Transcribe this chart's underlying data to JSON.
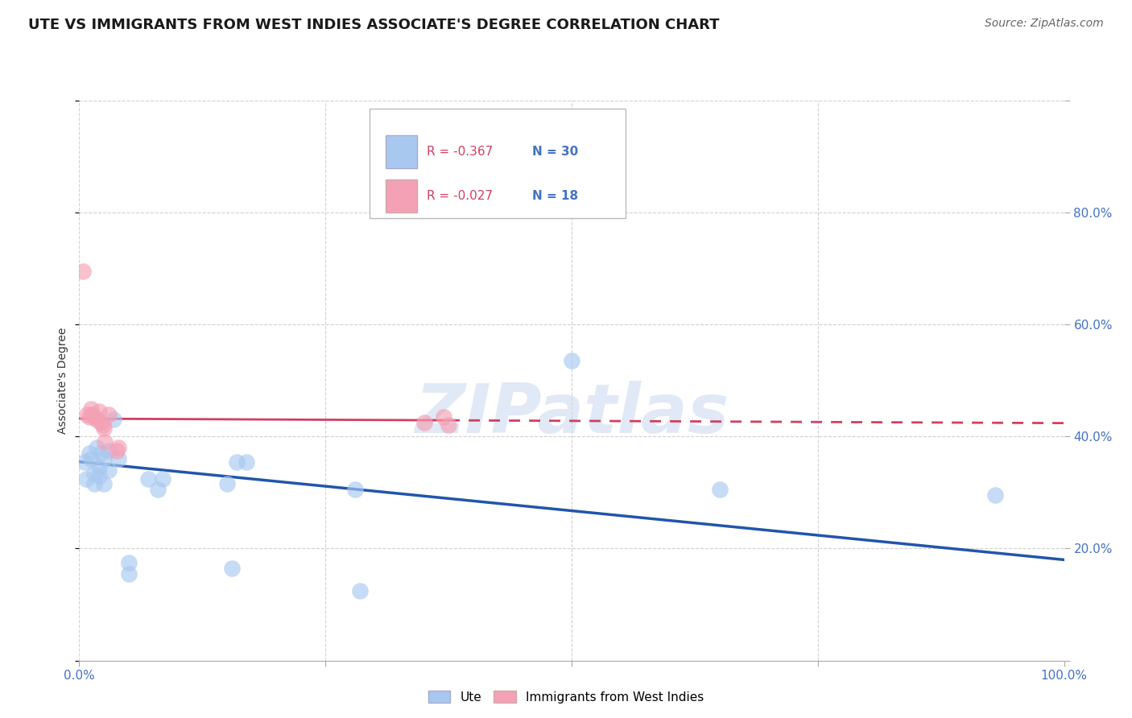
{
  "title": "UTE VS IMMIGRANTS FROM WEST INDIES ASSOCIATE'S DEGREE CORRELATION CHART",
  "source": "Source: ZipAtlas.com",
  "ylabel": "Associate's Degree",
  "legend_label1": "Ute",
  "legend_label2": "Immigrants from West Indies",
  "r1": -0.367,
  "n1": 30,
  "r2": -0.027,
  "n2": 18,
  "xlim": [
    0.0,
    1.0
  ],
  "ylim": [
    0.0,
    1.0
  ],
  "xticks": [
    0.0,
    0.25,
    0.5,
    0.75,
    1.0
  ],
  "yticks": [
    0.0,
    0.2,
    0.4,
    0.6,
    0.8,
    1.0
  ],
  "xtick_labels": [
    "0.0%",
    "",
    "",
    "",
    "100.0%"
  ],
  "ytick_labels": [
    "",
    "20.0%",
    "40.0%",
    "60.0%",
    "80.0%",
    ""
  ],
  "blue_scatter_x": [
    0.005,
    0.007,
    0.01,
    0.012,
    0.015,
    0.015,
    0.018,
    0.02,
    0.02,
    0.022,
    0.025,
    0.025,
    0.03,
    0.03,
    0.035,
    0.04,
    0.05,
    0.05,
    0.07,
    0.08,
    0.085,
    0.15,
    0.155,
    0.16,
    0.17,
    0.28,
    0.285,
    0.5,
    0.65,
    0.93
  ],
  "blue_scatter_y": [
    0.355,
    0.325,
    0.37,
    0.36,
    0.335,
    0.315,
    0.38,
    0.345,
    0.33,
    0.37,
    0.36,
    0.315,
    0.375,
    0.34,
    0.43,
    0.36,
    0.175,
    0.155,
    0.325,
    0.305,
    0.325,
    0.315,
    0.165,
    0.355,
    0.355,
    0.305,
    0.125,
    0.535,
    0.305,
    0.295
  ],
  "pink_scatter_x": [
    0.004,
    0.008,
    0.01,
    0.012,
    0.013,
    0.015,
    0.018,
    0.02,
    0.022,
    0.024,
    0.025,
    0.026,
    0.03,
    0.038,
    0.04,
    0.35,
    0.37,
    0.375
  ],
  "pink_scatter_y": [
    0.695,
    0.44,
    0.435,
    0.45,
    0.44,
    0.435,
    0.43,
    0.445,
    0.425,
    0.42,
    0.415,
    0.39,
    0.44,
    0.375,
    0.38,
    0.425,
    0.435,
    0.42
  ],
  "blue_line_y_intercept": 0.355,
  "blue_line_slope": -0.175,
  "pink_line_y_intercept": 0.432,
  "pink_line_slope": -0.008,
  "pink_line_solid_end": 0.375,
  "blue_color": "#A8C8F0",
  "pink_color": "#F4A0B5",
  "blue_line_color": "#2255AA",
  "pink_line_color": "#D04060",
  "title_fontsize": 13,
  "axis_label_fontsize": 10,
  "tick_fontsize": 11,
  "source_fontsize": 10,
  "watermark_text": "ZIPatlas",
  "grid_color": "#cccccc",
  "background_color": "#ffffff",
  "legend_r_color": "#D04060",
  "legend_n_color": "#4472C4"
}
